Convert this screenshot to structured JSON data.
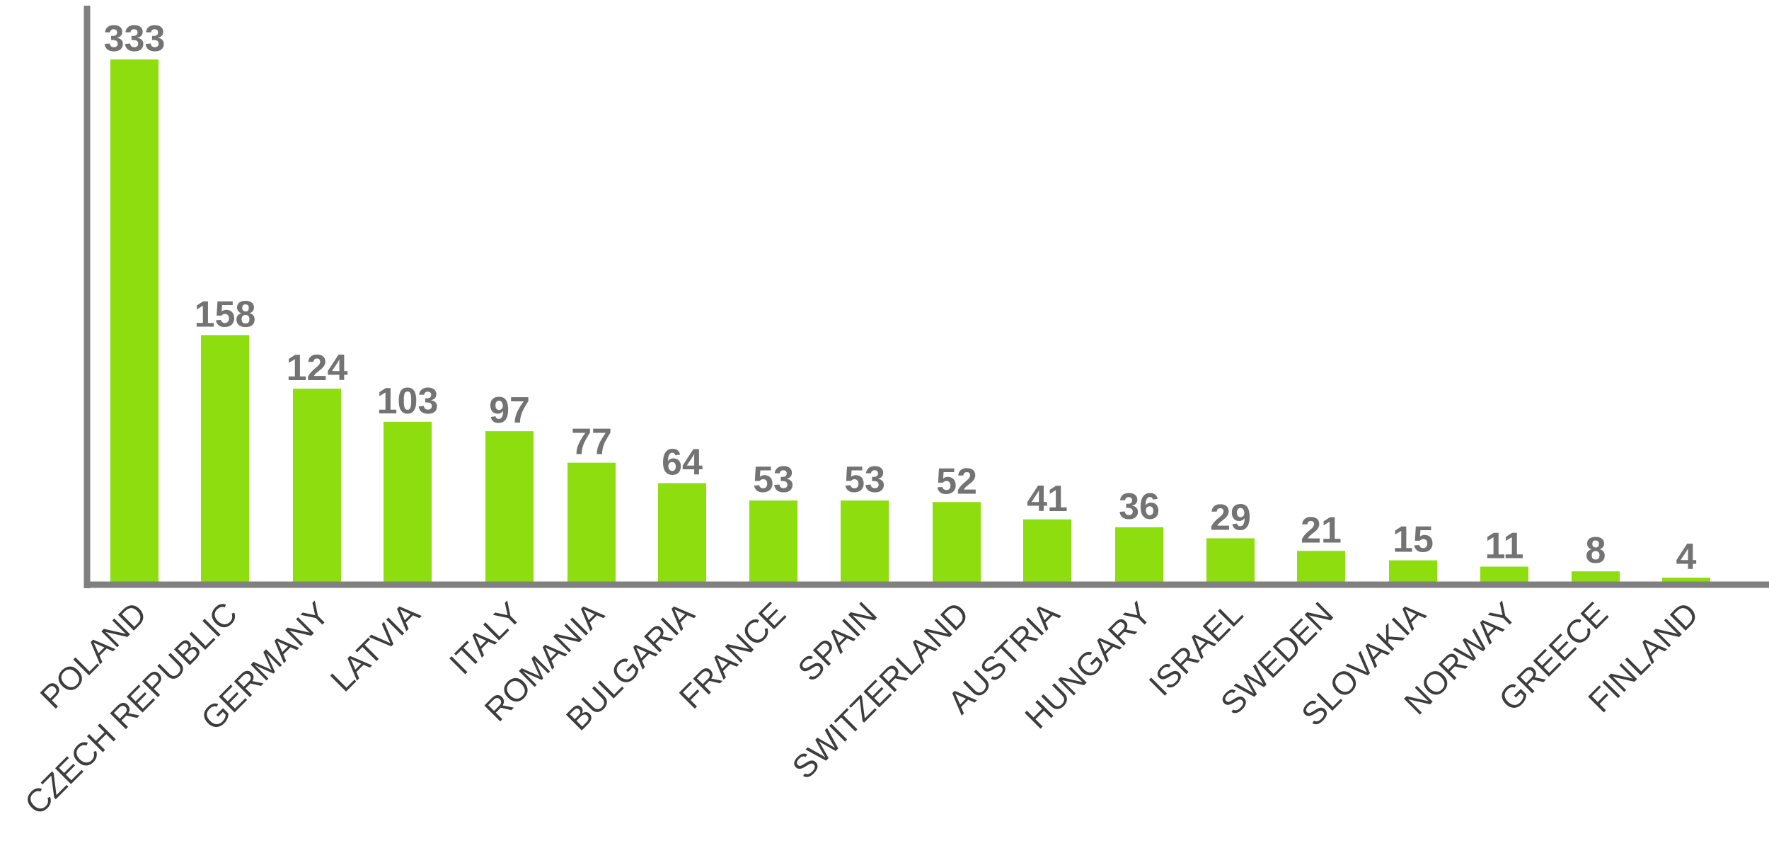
{
  "chart_data": {
    "type": "bar",
    "categories": [
      "POLAND",
      "CZECH REPUBLIC",
      "GERMANY",
      "LATVIA",
      "ITALY",
      "ROMANIA",
      "BULGARIA",
      "FRANCE",
      "SPAIN",
      "SWITZERLAND",
      "AUSTRIA",
      "HUNGARY",
      "ISRAEL",
      "SWEDEN",
      "SLOVAKIA",
      "NORWAY",
      "GREECE",
      "FINLAND"
    ],
    "values": [
      333,
      158,
      124,
      103,
      97,
      77,
      64,
      53,
      53,
      52,
      41,
      36,
      29,
      21,
      15,
      11,
      8,
      4
    ],
    "ylim": [
      0,
      333
    ],
    "grid": false,
    "legend": "none",
    "colors": {
      "bar": "#8edd0e",
      "value_label": "#737373",
      "category_label": "#3d3d3d",
      "axis": "#808080"
    }
  }
}
